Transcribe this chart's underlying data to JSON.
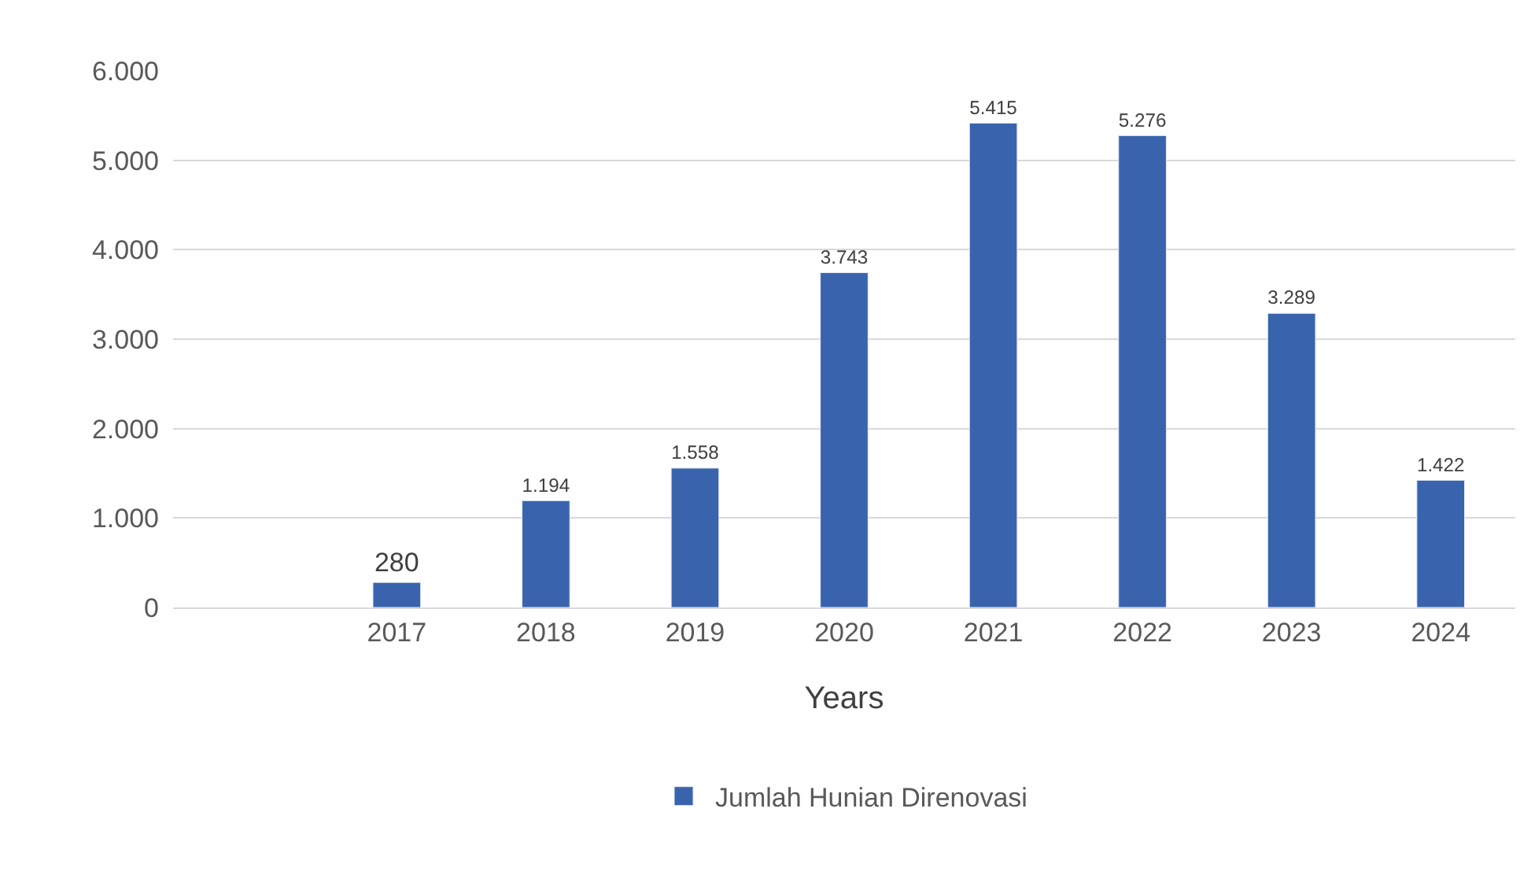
{
  "chart_data": {
    "type": "bar",
    "categories": [
      null,
      "2017",
      "2018",
      "2019",
      "2020",
      "2021",
      "2022",
      "2023",
      "2024"
    ],
    "series": [
      {
        "name": "Jumlah Hunian Direnovasi",
        "color": "#3a63ad",
        "values": [
          null,
          280,
          1194,
          1558,
          3743,
          5415,
          5276,
          3289,
          1422
        ],
        "value_labels": [
          null,
          "280",
          "1.194",
          "1.558",
          "3.743",
          "5.415",
          "5.276",
          "3.289",
          "1.422"
        ]
      }
    ],
    "xlabel": "Years",
    "ylim": [
      0,
      6000
    ],
    "yticks": [
      0,
      {
        "value": 1000,
        "label": "1.000"
      },
      {
        "value": 2000,
        "label": "2.000"
      },
      {
        "value": 3000,
        "label": "3.000"
      },
      {
        "value": 4000,
        "label": "4.000"
      },
      {
        "value": 5000,
        "label": "5.000"
      },
      {
        "value": 6000,
        "label": "6.000"
      }
    ],
    "grid": "y",
    "legend": "bottom"
  }
}
